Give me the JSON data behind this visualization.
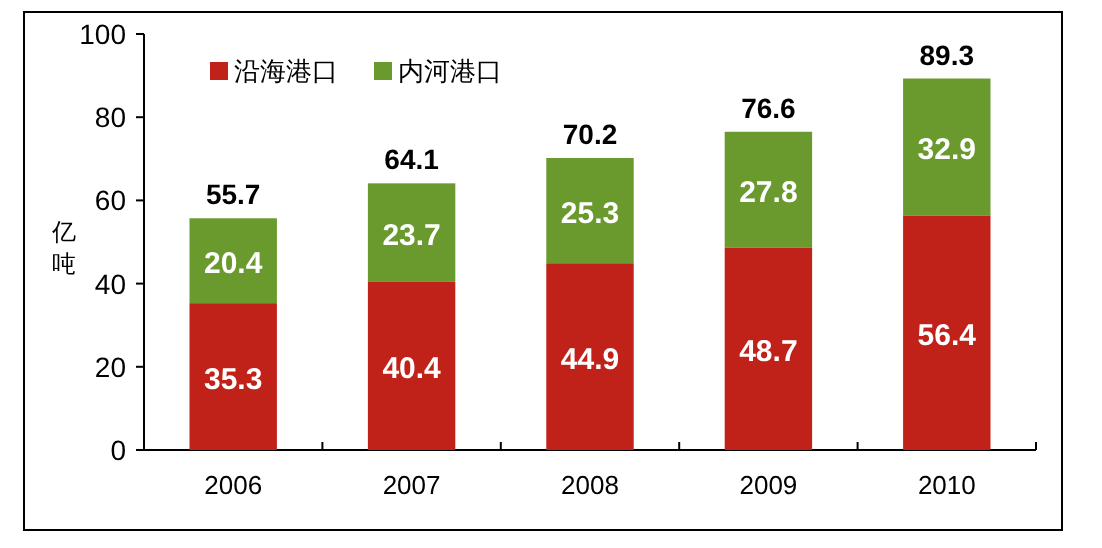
{
  "chart_data": {
    "type": "bar",
    "stacked": true,
    "categories": [
      "2006",
      "2007",
      "2008",
      "2009",
      "2010"
    ],
    "series": [
      {
        "name": "沿海港口",
        "color": "#c0221a",
        "values": [
          35.3,
          40.4,
          44.9,
          48.7,
          56.4
        ]
      },
      {
        "name": "内河港口",
        "color": "#6a992e",
        "values": [
          20.4,
          23.7,
          25.3,
          27.8,
          32.9
        ]
      }
    ],
    "ylabel": "亿吨",
    "ylim": [
      0,
      100
    ],
    "yticks": [
      0,
      20,
      40,
      60,
      80,
      100
    ],
    "legend": "top left",
    "data_labels": true,
    "totals": [
      "55.7",
      "64.1",
      "70.2",
      "76.6",
      "89.3"
    ]
  }
}
